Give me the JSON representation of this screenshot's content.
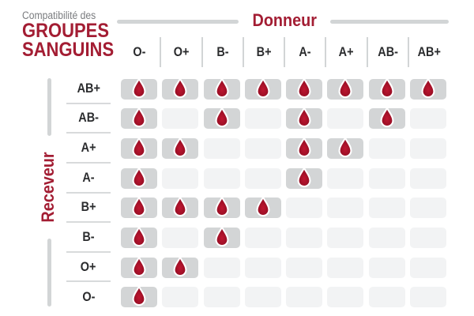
{
  "title": {
    "eyebrow": "Compatibilité des",
    "line1": "GROUPES",
    "line2": "SANGUINS"
  },
  "axes": {
    "donor": "Donneur",
    "receiver": "Receveur"
  },
  "icons": {
    "compatible_marker": "blood-drop-icon"
  },
  "colors": {
    "accent_red": "#a31d33",
    "drop_red": "#bf1630",
    "drop_red_dark": "#8e0d22",
    "box_filled": "#d3d5d6",
    "box_empty": "#f2f3f4",
    "line_gray": "#d2d5d6",
    "sep_gray": "#d8dadb",
    "text_dark": "#2b2c2e",
    "text_gray": "#7a7c7f"
  },
  "chart_data": {
    "type": "heatmap",
    "title": "Compatibilité des GROUPES SANGUINS",
    "x_label": "Donneur",
    "y_label": "Receveur",
    "columns": [
      "O-",
      "O+",
      "B-",
      "B+",
      "A-",
      "A+",
      "AB-",
      "AB+"
    ],
    "rows": [
      "AB+",
      "AB-",
      "A+",
      "A-",
      "B+",
      "B-",
      "O+",
      "O-"
    ],
    "compatibility": [
      [
        1,
        1,
        1,
        1,
        1,
        1,
        1,
        1
      ],
      [
        1,
        0,
        1,
        0,
        1,
        0,
        1,
        0
      ],
      [
        1,
        1,
        0,
        0,
        1,
        1,
        0,
        0
      ],
      [
        1,
        0,
        0,
        0,
        1,
        0,
        0,
        0
      ],
      [
        1,
        1,
        1,
        1,
        0,
        0,
        0,
        0
      ],
      [
        1,
        0,
        1,
        0,
        0,
        0,
        0,
        0
      ],
      [
        1,
        1,
        0,
        0,
        0,
        0,
        0,
        0
      ],
      [
        1,
        0,
        0,
        0,
        0,
        0,
        0,
        0
      ]
    ],
    "legend": "blood-drop icon on dark box = compatible; empty light box = incompatible",
    "grid": "off"
  }
}
